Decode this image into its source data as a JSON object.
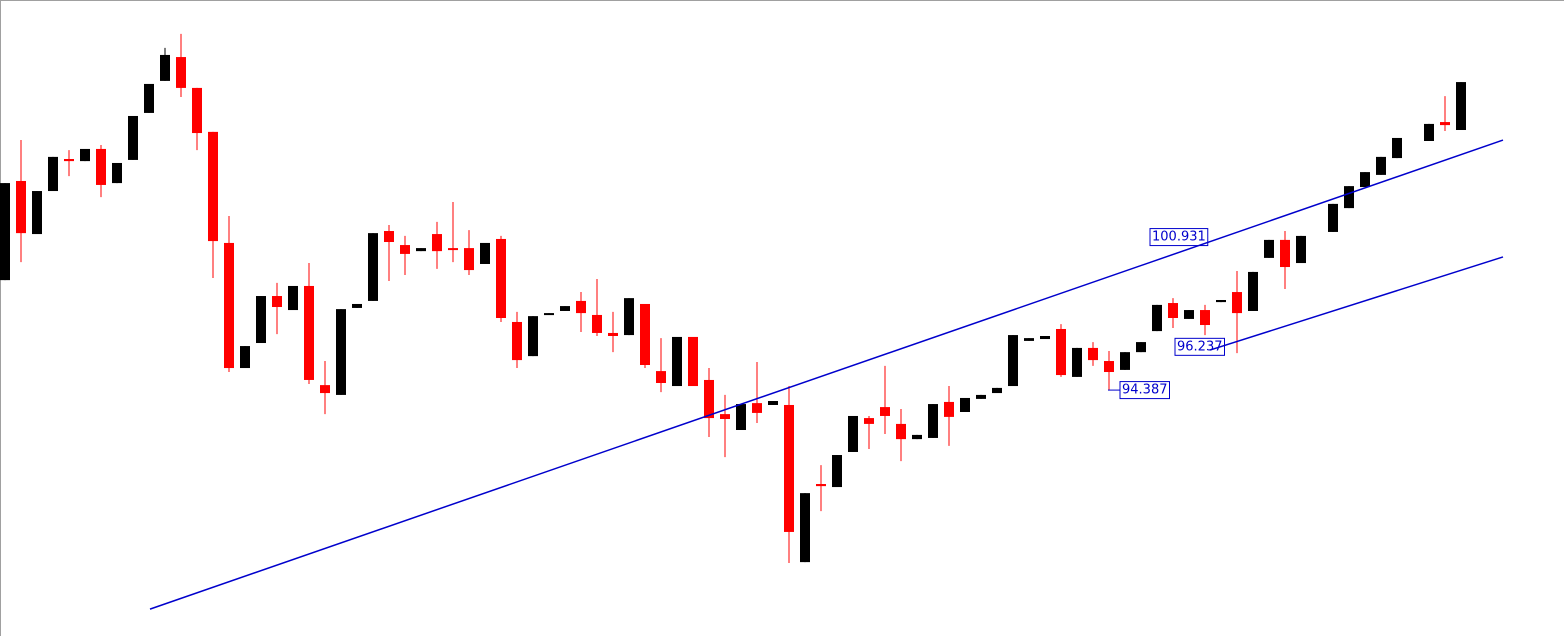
{
  "chart_data": {
    "type": "candlestick",
    "up_color": "#000000",
    "down_color": "#ff0000",
    "line_color": "#0000cc",
    "ylim": [
      83.87,
      111.07
    ],
    "open": [
      99.09,
      103.33,
      101.06,
      102.9,
      104.27,
      104.18,
      104.7,
      103.24,
      104.23,
      106.24,
      107.61,
      108.63,
      107.31,
      105.43,
      100.68,
      95.33,
      96.4,
      98.41,
      97.81,
      98.84,
      94.6,
      94.18,
      97.9,
      98.2,
      101.19,
      100.59,
      100.33,
      101.06,
      100.46,
      100.46,
      99.78,
      100.85,
      97.3,
      95.84,
      97.6,
      97.77,
      98.2,
      97.6,
      96.83,
      96.74,
      98.07,
      95.2,
      94.56,
      96.66,
      94.82,
      93.36,
      92.68,
      93.83,
      93.75,
      93.75,
      87.03,
      90.37,
      90.24,
      91.74,
      93.19,
      93.66,
      92.94,
      92.29,
      92.34,
      93.88,
      93.45,
      94.01,
      94.26,
      94.56,
      96.49,
      96.57,
      97.0,
      94.95,
      96.19,
      95.63,
      95.25,
      96.01,
      96.91,
      98.11,
      97.43,
      97.81,
      98.15,
      98.58,
      97.77,
      100.04,
      100.81,
      99.82,
      null,
      101.15,
      102.17,
      103.07,
      103.59,
      104.31,
      null,
      105.04,
      105.85,
      105.51
    ],
    "high": [
      103.24,
      105.08,
      102.9,
      104.36,
      104.65,
      104.7,
      104.87,
      104.1,
      106.11,
      107.48,
      109.02,
      109.62,
      107.31,
      105.43,
      101.83,
      96.27,
      98.41,
      98.97,
      98.84,
      99.82,
      95.63,
      97.85,
      98.07,
      101.1,
      101.45,
      100.98,
      100.46,
      101.58,
      102.43,
      101.23,
      100.68,
      100.98,
      97.73,
      97.55,
      97.68,
      97.98,
      98.58,
      99.14,
      97.73,
      98.32,
      98.07,
      96.61,
      96.66,
      96.66,
      95.33,
      94.18,
      93.79,
      95.59,
      93.92,
      94.56,
      89.98,
      91.18,
      91.61,
      93.28,
      93.28,
      95.42,
      93.58,
      92.47,
      93.79,
      94.56,
      94.05,
      94.18,
      94.48,
      96.74,
      96.61,
      96.7,
      97.21,
      96.19,
      96.44,
      96.06,
      96.01,
      96.44,
      98.03,
      98.32,
      97.81,
      98.03,
      98.24,
      99.48,
      99.44,
      100.81,
      101.19,
      100.98,
      null,
      102.35,
      103.11,
      103.71,
      104.36,
      105.17,
      null,
      105.77,
      106.96,
      107.56
    ],
    "low": [
      99.09,
      99.86,
      101.06,
      102.9,
      103.54,
      104.18,
      102.64,
      103.24,
      104.23,
      106.24,
      107.61,
      106.92,
      104.65,
      99.18,
      95.16,
      95.33,
      96.4,
      96.78,
      97.81,
      94.65,
      93.36,
      94.18,
      97.9,
      98.2,
      99.05,
      99.31,
      100.33,
      99.57,
      99.86,
      99.31,
      99.78,
      97.3,
      95.33,
      95.84,
      97.6,
      97.77,
      96.87,
      96.7,
      96.01,
      96.74,
      95.33,
      94.3,
      94.56,
      94.56,
      92.38,
      91.52,
      92.68,
      92.98,
      93.75,
      86.99,
      87.03,
      89.21,
      90.24,
      91.74,
      91.87,
      92.51,
      91.35,
      92.29,
      92.34,
      92.0,
      93.45,
      94.01,
      94.26,
      94.56,
      96.49,
      96.57,
      94.95,
      94.95,
      95.42,
      94.39,
      95.25,
      96.01,
      96.91,
      97.04,
      97.43,
      96.74,
      98.15,
      95.97,
      97.77,
      100.04,
      98.71,
      99.82,
      null,
      101.15,
      102.17,
      103.07,
      103.59,
      104.31,
      null,
      105.04,
      105.47,
      105.51
    ],
    "close": [
      103.24,
      101.1,
      102.9,
      104.36,
      104.18,
      104.7,
      103.16,
      104.1,
      106.11,
      107.48,
      108.72,
      107.31,
      105.38,
      100.76,
      95.33,
      96.27,
      98.41,
      97.94,
      98.84,
      94.82,
      94.26,
      97.85,
      98.07,
      101.1,
      100.72,
      100.21,
      100.46,
      100.33,
      100.38,
      99.52,
      100.68,
      97.47,
      95.67,
      97.55,
      97.68,
      97.98,
      97.68,
      96.83,
      96.7,
      98.32,
      95.46,
      94.69,
      96.66,
      94.56,
      93.19,
      93.15,
      93.79,
      93.41,
      93.92,
      88.32,
      89.98,
      90.28,
      91.61,
      93.28,
      92.94,
      93.28,
      92.29,
      92.47,
      93.79,
      93.24,
      94.05,
      94.18,
      94.48,
      96.74,
      96.61,
      96.7,
      95.03,
      96.19,
      95.67,
      95.16,
      96.01,
      96.44,
      98.03,
      97.47,
      97.81,
      97.17,
      98.24,
      97.68,
      99.44,
      100.81,
      99.65,
      100.98,
      null,
      102.35,
      103.11,
      103.71,
      104.36,
      105.17,
      null,
      105.77,
      105.72,
      107.56
    ],
    "trendlines": [
      {
        "start": 85.02,
        "end": 105.08
      },
      {
        "start": 96.1,
        "end": 100.08
      }
    ],
    "annotations": [
      {
        "value": 100.931
      },
      {
        "value": 96.237
      },
      {
        "value": 94.387
      }
    ]
  }
}
